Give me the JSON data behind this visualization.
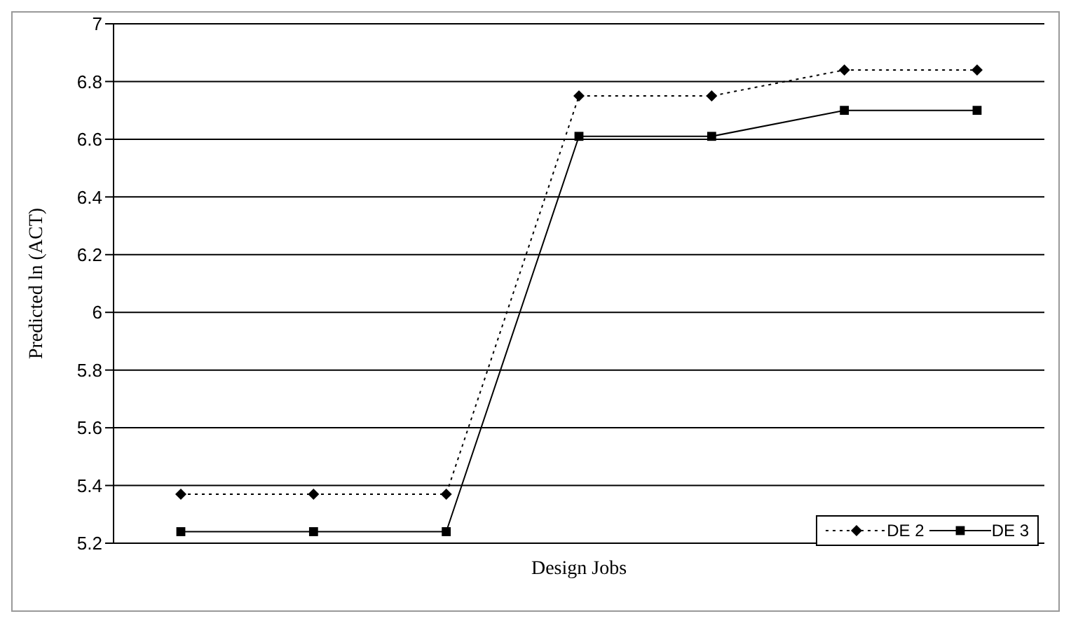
{
  "chart_data": {
    "type": "line",
    "xlabel": "Design Jobs",
    "ylabel": "Predicted ln (ACT)",
    "categories": [
      null,
      null,
      null,
      null,
      null,
      null,
      null
    ],
    "series": [
      {
        "name": "DE 2",
        "color": "#000000",
        "marker": "diamond",
        "line_style": "dotted",
        "values": [
          5.37,
          5.37,
          5.37,
          6.75,
          6.75,
          6.84,
          6.84
        ]
      },
      {
        "name": "DE 3",
        "color": "#000000",
        "marker": "square",
        "line_style": "solid",
        "values": [
          5.24,
          5.24,
          5.24,
          6.61,
          6.61,
          6.7,
          6.7
        ]
      }
    ],
    "ylim": [
      5.2,
      7
    ],
    "yticks": [
      5.2,
      5.4,
      5.6,
      5.8,
      6,
      6.2,
      6.4,
      6.6,
      6.8,
      7
    ],
    "grid": "y",
    "legend": "bottom right"
  }
}
